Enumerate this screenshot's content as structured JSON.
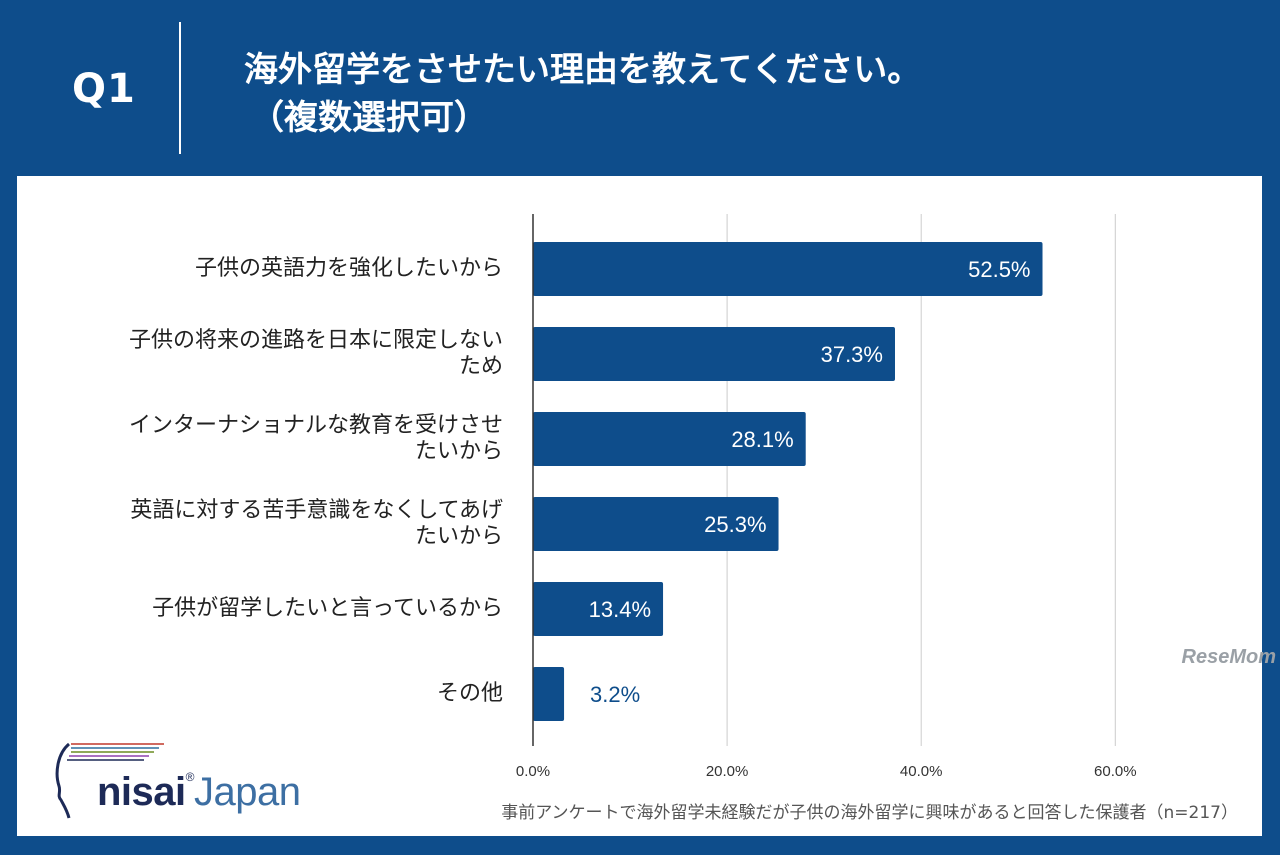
{
  "header": {
    "question_label": "Q1",
    "title_line1": "海外留学をさせたい理由を教えてください。",
    "title_line2": "（複数選択可）"
  },
  "colors": {
    "bar": "#0e4d8b",
    "background": "#0e4d8b",
    "panel": "#ffffff"
  },
  "chart_data": {
    "type": "bar",
    "orientation": "horizontal",
    "categories": [
      [
        "子供の英語力を強化したいから"
      ],
      [
        "子供の将来の進路を日本に限定しない",
        "ため"
      ],
      [
        "インターナショナルな教育を受けさせ",
        "たいから"
      ],
      [
        "英語に対する苦手意識をなくしてあげ",
        "たいから"
      ],
      [
        "子供が留学したいと言っているから"
      ],
      [
        "その他"
      ]
    ],
    "values": [
      52.5,
      37.3,
      28.1,
      25.3,
      13.4,
      3.2
    ],
    "value_labels": [
      "52.5%",
      "37.3%",
      "28.1%",
      "25.3%",
      "13.4%",
      "3.2%"
    ],
    "xlim": [
      0,
      70
    ],
    "xticks": [
      0,
      20,
      40,
      60
    ],
    "xtick_labels": [
      "0.0%",
      "20.0%",
      "40.0%",
      "60.0%"
    ],
    "grid": true
  },
  "logo": {
    "brand_a": "nisai",
    "brand_b": "®",
    "brand_c": "Japan"
  },
  "footnote": "事前アンケートで海外留学未経験だが子供の海外留学に興味があると回答した保護者（n=217）",
  "watermark": "ReseMom"
}
